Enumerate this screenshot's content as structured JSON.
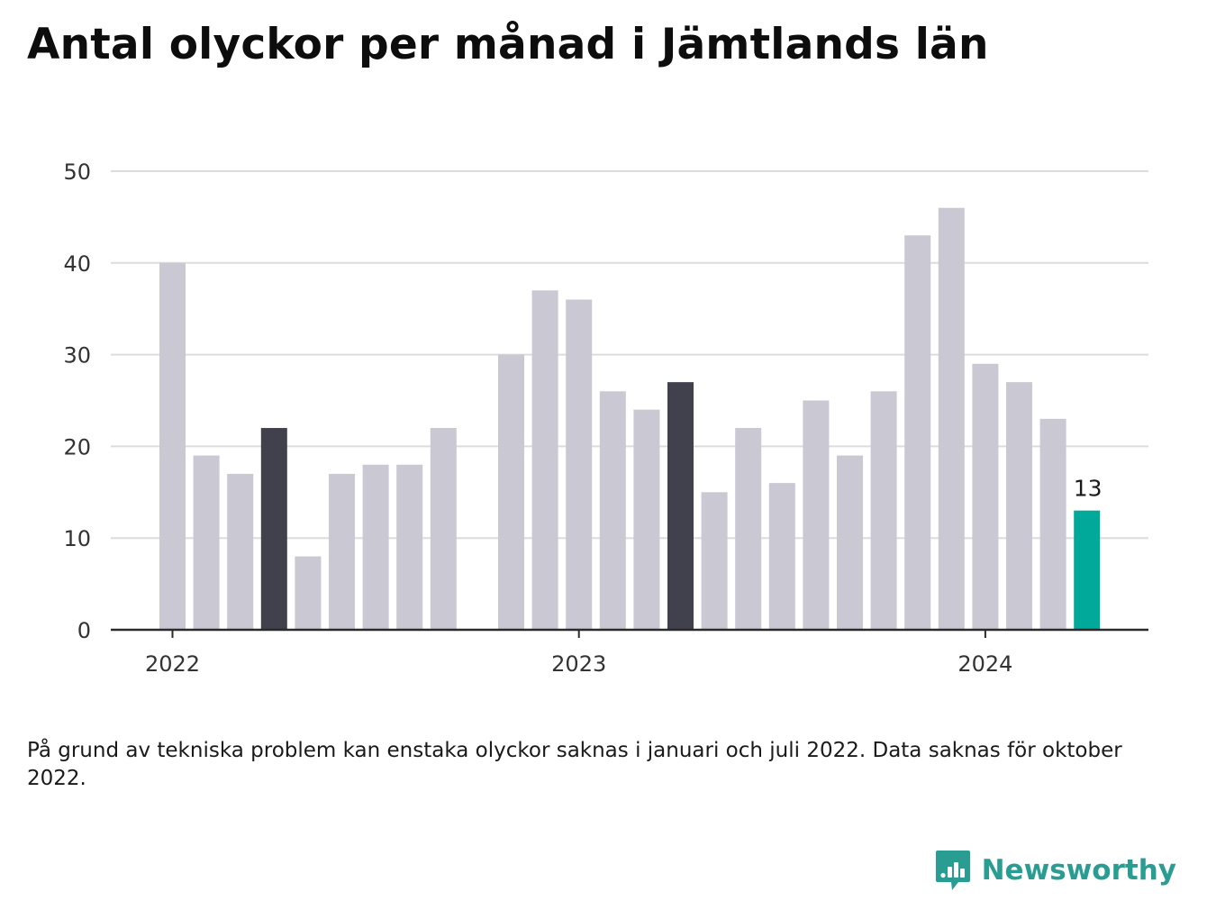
{
  "title": "Antal olyckor per månad i Jämtlands län",
  "footnote": "På grund av tekniska problem kan enstaka olyckor saknas i januari och juli 2022. Data saknas för oktober 2022.",
  "brand": {
    "name": "Newsworthy",
    "logo_icon": "newsworthy-bar-chart-logo-icon"
  },
  "colors": {
    "bar_default": "#c9c8d3",
    "bar_highlight": "#41404d",
    "bar_current": "#00a99a",
    "grid": "#dcdcdc",
    "axis": "#2b2b2b",
    "tick_text": "#333333",
    "brand": "#2a9d93"
  },
  "chart_data": {
    "type": "bar",
    "x": [
      "2022-01",
      "2022-02",
      "2022-03",
      "2022-04",
      "2022-05",
      "2022-06",
      "2022-07",
      "2022-08",
      "2022-09",
      "2022-10",
      "2022-11",
      "2022-12",
      "2023-01",
      "2023-02",
      "2023-03",
      "2023-04",
      "2023-05",
      "2023-06",
      "2023-07",
      "2023-08",
      "2023-09",
      "2023-10",
      "2023-11",
      "2023-12",
      "2024-01",
      "2024-02",
      "2024-03",
      "2024-04"
    ],
    "values": [
      40,
      19,
      17,
      22,
      8,
      17,
      18,
      18,
      22,
      null,
      30,
      37,
      36,
      26,
      24,
      27,
      15,
      22,
      16,
      25,
      19,
      26,
      43,
      46,
      29,
      27,
      23,
      13
    ],
    "highlight": [
      "2022-04",
      "2023-04"
    ],
    "current": "2024-04",
    "data_labels": [
      {
        "x": "2024-04",
        "text": "13"
      }
    ],
    "x_tick_labels": [
      {
        "x": "2022-01",
        "label": "2022"
      },
      {
        "x": "2023-01",
        "label": "2023"
      },
      {
        "x": "2024-01",
        "label": "2024"
      }
    ],
    "y_ticks": [
      0,
      10,
      20,
      30,
      40,
      50
    ],
    "ylim": [
      0,
      50
    ],
    "grid": true,
    "legend": "none",
    "xlabel": "",
    "ylabel": ""
  }
}
